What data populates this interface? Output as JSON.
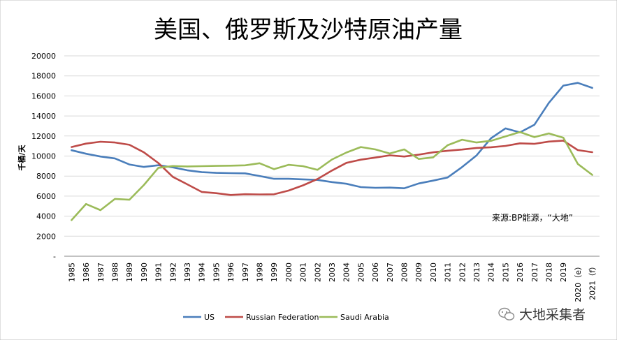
{
  "chart_data": {
    "type": "line",
    "title": "美国、俄罗斯及沙特原油产量",
    "ylabel": "千桶/天",
    "xlabel": "",
    "ylim": [
      0,
      20000
    ],
    "yticks": [
      {
        "value": 0,
        "label": "-"
      },
      {
        "value": 2000,
        "label": "2000"
      },
      {
        "value": 4000,
        "label": "4000"
      },
      {
        "value": 6000,
        "label": "6000"
      },
      {
        "value": 8000,
        "label": "8000"
      },
      {
        "value": 10000,
        "label": "10000"
      },
      {
        "value": 12000,
        "label": "12000"
      },
      {
        "value": 14000,
        "label": "14000"
      },
      {
        "value": 16000,
        "label": "16000"
      },
      {
        "value": 18000,
        "label": "18000"
      },
      {
        "value": 20000,
        "label": "20000"
      }
    ],
    "grid": true,
    "legend_position": "bottom",
    "categories": [
      "1985",
      "1986",
      "1987",
      "1988",
      "1989",
      "1990",
      "1991",
      "1992",
      "1993",
      "1994",
      "1995",
      "1996",
      "1997",
      "1998",
      "1999",
      "2000",
      "2001",
      "2002",
      "2003",
      "2004",
      "2005",
      "2006",
      "2007",
      "2008",
      "2009",
      "2010",
      "2011",
      "2012",
      "2013",
      "2014",
      "2015",
      "2016",
      "2017",
      "2018",
      "2019",
      "2020（e）",
      "2021（f）"
    ],
    "series": [
      {
        "name": "US",
        "color": "#4a7ebb",
        "values": [
          10580,
          10230,
          9950,
          9760,
          9160,
          8910,
          9080,
          8870,
          8580,
          8390,
          8320,
          8290,
          8270,
          8010,
          7730,
          7730,
          7670,
          7620,
          7400,
          7230,
          6900,
          6830,
          6850,
          6780,
          7260,
          7550,
          7860,
          8900,
          10060,
          11780,
          12760,
          12360,
          13120,
          15310,
          17030,
          17300,
          16800
        ]
      },
      {
        "name": "Russian Federation",
        "color": "#be4b48",
        "values": [
          10900,
          11240,
          11430,
          11350,
          11120,
          10370,
          9300,
          7920,
          7180,
          6420,
          6290,
          6110,
          6190,
          6170,
          6180,
          6550,
          7070,
          7700,
          8550,
          9320,
          9640,
          9850,
          10070,
          9950,
          10140,
          10370,
          10530,
          10650,
          10810,
          10880,
          11010,
          11270,
          11220,
          11440,
          11540,
          10590,
          10380
        ]
      },
      {
        "name": "Saudi Arabia",
        "color": "#9bbb59",
        "values": [
          3600,
          5210,
          4600,
          5720,
          5640,
          7110,
          8820,
          9000,
          8960,
          8990,
          9020,
          9040,
          9070,
          9280,
          8690,
          9120,
          8990,
          8620,
          9650,
          10350,
          10900,
          10660,
          10250,
          10660,
          9710,
          9870,
          11080,
          11630,
          11350,
          11520,
          11960,
          12400,
          11890,
          12260,
          11830,
          9210,
          8120
        ]
      }
    ],
    "annotation": "来源:BP能源，“大地”"
  },
  "watermark": {
    "text": "大地采集者"
  }
}
